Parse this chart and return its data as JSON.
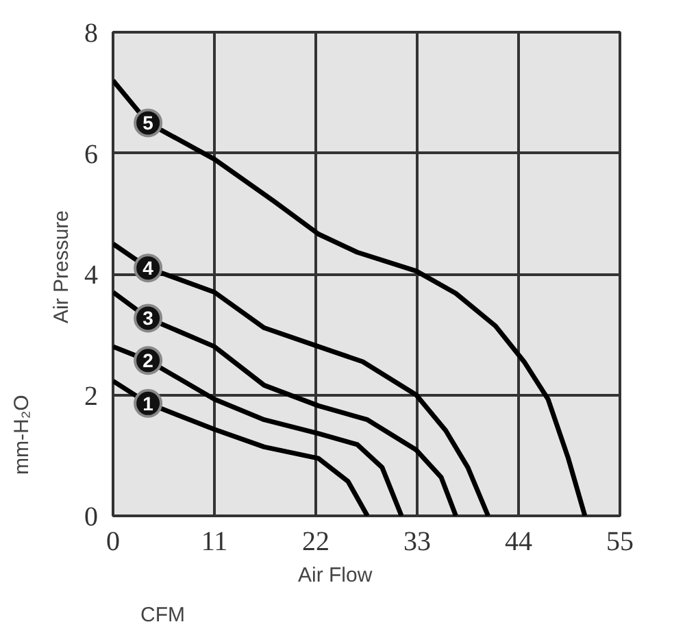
{
  "chart_data": {
    "type": "line",
    "xlabel": "Air Flow",
    "ylabel": "Air Pressure",
    "annotations": [
      "CFM",
      "mm-H₂O"
    ],
    "xlim": [
      0,
      55
    ],
    "ylim": [
      0,
      8
    ],
    "xticks": [
      0,
      11,
      22,
      33,
      44,
      55
    ],
    "yticks": [
      0,
      2,
      4,
      6,
      8
    ],
    "grid": true,
    "marker": "none",
    "line_style": "solid",
    "series": [
      {
        "name": "1",
        "color": "#000000",
        "x": [
          0,
          3.8,
          11,
          16.4,
          22.3,
          25.5,
          27.6
        ],
        "values": [
          2.23,
          1.86,
          1.43,
          1.14,
          0.95,
          0.57,
          0
        ]
      },
      {
        "name": "2",
        "color": "#000000",
        "x": [
          0,
          3.8,
          11,
          16.4,
          22.3,
          26.5,
          29.2,
          31.3
        ],
        "values": [
          2.8,
          2.57,
          1.93,
          1.59,
          1.36,
          1.18,
          0.8,
          0
        ]
      },
      {
        "name": "3",
        "color": "#000000",
        "x": [
          0,
          3.8,
          11,
          16.4,
          22.3,
          27.6,
          32.9,
          35.6,
          37.2
        ],
        "values": [
          3.7,
          3.27,
          2.8,
          2.16,
          1.82,
          1.59,
          1.09,
          0.64,
          0
        ]
      },
      {
        "name": "4",
        "color": "#000000",
        "x": [
          0,
          3.8,
          11,
          16.4,
          22.3,
          27.1,
          32.9,
          36.1,
          38.5,
          40.7
        ],
        "values": [
          4.5,
          4.1,
          3.7,
          3.11,
          2.8,
          2.55,
          2.0,
          1.41,
          0.8,
          0
        ]
      },
      {
        "name": "5",
        "color": "#000000",
        "x": [
          0,
          3.8,
          11,
          17.5,
          22.3,
          26.5,
          32.9,
          37.2,
          41.5,
          44.6,
          47.2,
          49.4,
          51.2
        ],
        "values": [
          7.2,
          6.5,
          5.9,
          5.2,
          4.66,
          4.36,
          4.05,
          3.68,
          3.14,
          2.55,
          1.93,
          0.95,
          0
        ]
      }
    ]
  }
}
